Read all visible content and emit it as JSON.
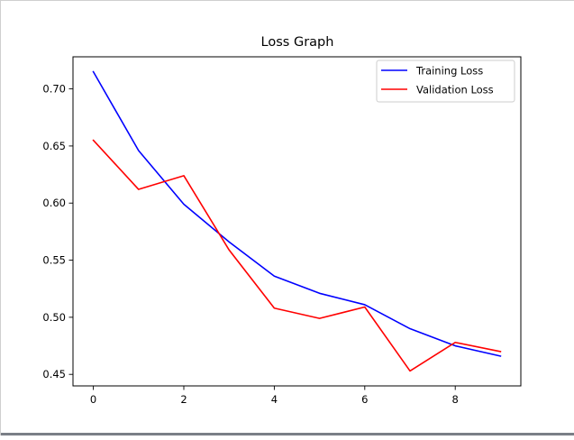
{
  "chart_data": {
    "type": "line",
    "title": "Loss Graph",
    "xlabel": "",
    "ylabel": "",
    "x": [
      0,
      1,
      2,
      3,
      4,
      5,
      6,
      7,
      8,
      9
    ],
    "series": [
      {
        "name": "Training Loss",
        "color": "#0000ff",
        "values": [
          0.715,
          0.646,
          0.599,
          0.566,
          0.536,
          0.521,
          0.511,
          0.49,
          0.475,
          0.466
        ]
      },
      {
        "name": "Validation Loss",
        "color": "#ff0000",
        "values": [
          0.655,
          0.612,
          0.624,
          0.559,
          0.508,
          0.499,
          0.509,
          0.453,
          0.478,
          0.47
        ]
      }
    ],
    "xticks": [
      "0",
      "2",
      "4",
      "6",
      "8"
    ],
    "xtick_values": [
      0,
      2,
      4,
      6,
      8
    ],
    "yticks": [
      "0.45",
      "0.50",
      "0.55",
      "0.60",
      "0.65",
      "0.70"
    ],
    "ytick_values": [
      0.45,
      0.5,
      0.55,
      0.6,
      0.65,
      0.7
    ],
    "xlim": [
      -0.45,
      9.45
    ],
    "ylim": [
      0.4399,
      0.7281
    ],
    "grid": false,
    "legend_position": "top-right"
  }
}
